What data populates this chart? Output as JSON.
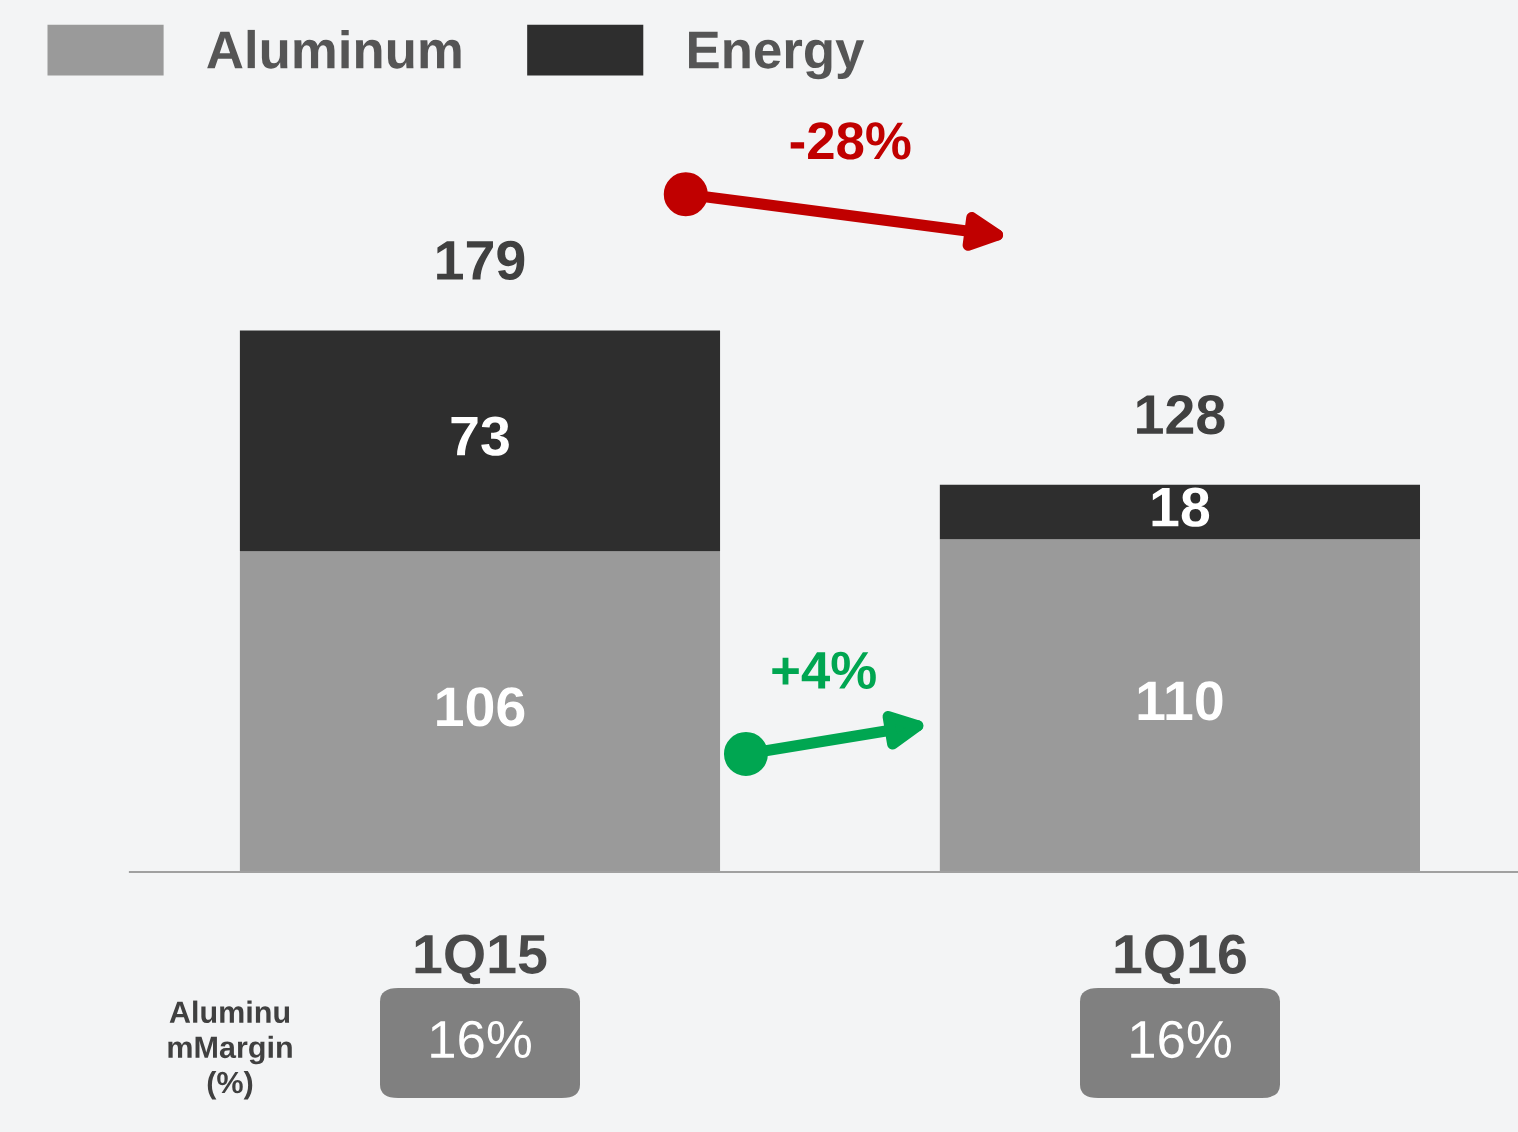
{
  "chart_data": {
    "type": "bar",
    "stacked": true,
    "categories": [
      "1Q15",
      "1Q16"
    ],
    "series": [
      {
        "name": "Aluminum",
        "color": "#9a9a9a",
        "values": [
          106,
          110
        ]
      },
      {
        "name": "Energy",
        "color": "#2e2e2e",
        "values": [
          73,
          18
        ]
      }
    ],
    "data_labels": true,
    "totals": [
      "179",
      "128"
    ],
    "legend": "top left",
    "grid": false,
    "annotations": [
      "-28%",
      "+4%",
      "Aluminu\nmMargin\n(%)",
      "16%",
      "16%"
    ]
  }
}
